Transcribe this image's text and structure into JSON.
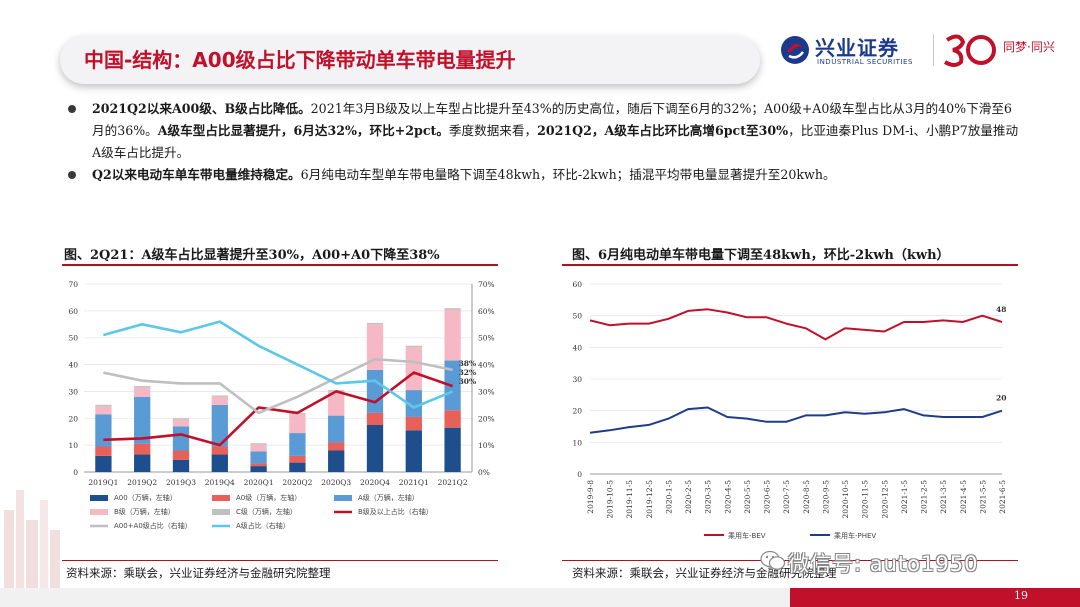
{
  "header": {
    "title": "中国-结构：A00级占比下降带动单车带电量提升",
    "logo_name": "兴业证券",
    "logo_en": "INDUSTRIAL SECURITIES",
    "logo_slogan": "同梦·同兴",
    "brand_red": "#c0102a",
    "brand_blue": "#1c3a8c"
  },
  "bullets": [
    {
      "parts": [
        {
          "text": "2021Q2以来A00级、B级占比降低。",
          "bold": true
        },
        {
          "text": "2021年3月B级及以上车型占比提升至43%的历史高位，随后下调至6月的32%；A00级+A0级车型占比从3月的40%下滑至6月的36%。",
          "bold": false
        },
        {
          "text": "A级车型占比显著提升，6月达32%，环比+2pct。",
          "bold": true
        },
        {
          "text": "季度数据来看，",
          "bold": false
        },
        {
          "text": "2021Q2，A级车占比环比高增6pct至30%",
          "bold": true
        },
        {
          "text": "，比亚迪秦Plus DM-i、小鹏P7放量推动A级车占比提升。",
          "bold": false
        }
      ]
    },
    {
      "parts": [
        {
          "text": "Q2以来电动车单车带电量维持稳定。",
          "bold": true
        },
        {
          "text": "6月纯电动车型单车带电量略下调至48kwh，环比-2kwh；插混平均带电量显著提升至20kwh。",
          "bold": false
        }
      ]
    }
  ],
  "chart_left": {
    "title": "图、2Q21：A级车占比显著提升至30%，A00+A0下降至38%",
    "source": "资料来源：乘联会，兴业证券经济与金融研究院整理",
    "chart_data": {
      "type": "bar",
      "categories": [
        "2019Q1",
        "2019Q2",
        "2019Q3",
        "2019Q4",
        "2020Q1",
        "2020Q2",
        "2020Q3",
        "2020Q4",
        "2021Q1",
        "2021Q2"
      ],
      "y_left_ticks": [
        "0",
        "10",
        "20",
        "30",
        "40",
        "50",
        "60",
        "70"
      ],
      "y_right_ticks": [
        "0%",
        "10%",
        "20%",
        "30%",
        "40%",
        "50%",
        "60%",
        "70%"
      ],
      "ylim": [
        0,
        70
      ],
      "series": [
        {
          "name": "A00（万辆，左轴）",
          "kind": "stack",
          "color": "#1f4e8c",
          "values": [
            6,
            6.5,
            4.5,
            6.5,
            2.2,
            3.5,
            8,
            17.5,
            15.5,
            16.5
          ]
        },
        {
          "name": "A0级（万辆，左轴）",
          "kind": "stack",
          "color": "#e8605a",
          "values": [
            3.5,
            4,
            3.5,
            3,
            1,
            2.5,
            3,
            4.5,
            5,
            6.5
          ]
        },
        {
          "name": "A级（万辆，左轴）",
          "kind": "stack",
          "color": "#5b9bd5",
          "values": [
            12,
            17.5,
            9,
            15.5,
            4.5,
            8.5,
            10,
            16,
            10,
            18.5
          ]
        },
        {
          "name": "B级（万辆，左轴）",
          "kind": "stack",
          "color": "#f5b8c4",
          "values": [
            3,
            3.5,
            2.5,
            3,
            2.5,
            7,
            9,
            17,
            16,
            19
          ]
        },
        {
          "name": "C级（万辆，左轴）",
          "kind": "stack",
          "color": "#c0c0c0",
          "values": [
            0.5,
            0.5,
            0.5,
            0.5,
            0.5,
            0.5,
            0.5,
            0.5,
            0.5,
            0.5
          ]
        },
        {
          "name": "B级及以上占比（右轴）",
          "kind": "line",
          "color": "#c0102a",
          "values": [
            12,
            12.5,
            14,
            10,
            24,
            22,
            30,
            26,
            37,
            32
          ]
        },
        {
          "name": "A00+A0级占比（右轴）",
          "kind": "line",
          "color": "#bfbfbf",
          "values": [
            37,
            34,
            33,
            33,
            22,
            28,
            35,
            42,
            41,
            38
          ]
        },
        {
          "name": "A级占比（右轴）",
          "kind": "line",
          "color": "#5bc8e8",
          "values": [
            51,
            55,
            52,
            56,
            47,
            40,
            33,
            34,
            24,
            30
          ]
        }
      ],
      "end_labels": [
        "38%",
        "32%",
        "30%"
      ]
    }
  },
  "chart_right": {
    "title": "图、6月纯电动单车带电量下调至48kwh，环比-2kwh（kwh）",
    "source": "资料来源：乘联会，兴业证券经济与金融研究院整理",
    "chart_data": {
      "type": "line",
      "x": [
        "2019-9-8",
        "2019-10-5",
        "2019-11-5",
        "2019-12-5",
        "2020-1-5",
        "2020-2-5",
        "2020-3-5",
        "2020-4-5",
        "2020-5-5",
        "2020-6-5",
        "2020-7-5",
        "2020-8-5",
        "2020-9-5",
        "2020-10-5",
        "2020-11-5",
        "2020-12-5",
        "2021-1-5",
        "2021-2-5",
        "2021-3-5",
        "2021-4-5",
        "2021-5-5",
        "2021-6-5"
      ],
      "y_ticks": [
        "0",
        "10",
        "20",
        "30",
        "40",
        "50",
        "60"
      ],
      "ylim": [
        0,
        60
      ],
      "series": [
        {
          "name": "乘用车-BEV",
          "color": "#c0102a",
          "values": [
            48.5,
            47,
            47.5,
            47.5,
            49,
            51.5,
            52,
            51,
            49.5,
            49.5,
            47.5,
            46,
            42.5,
            46,
            45.5,
            45,
            48,
            48,
            48.5,
            48,
            50,
            48
          ]
        },
        {
          "name": "乘用车-PHEV",
          "color": "#1f3c88",
          "values": [
            13,
            13.8,
            14.8,
            15.5,
            17.5,
            20.5,
            21,
            18,
            17.5,
            16.5,
            16.5,
            18.5,
            18.5,
            19.5,
            19,
            19.5,
            20.5,
            18.5,
            18,
            18,
            18,
            20
          ]
        }
      ],
      "end_labels": [
        "48",
        "20"
      ]
    }
  },
  "footer": {
    "watermark": "微信号: auto1950",
    "page_number": "19"
  }
}
